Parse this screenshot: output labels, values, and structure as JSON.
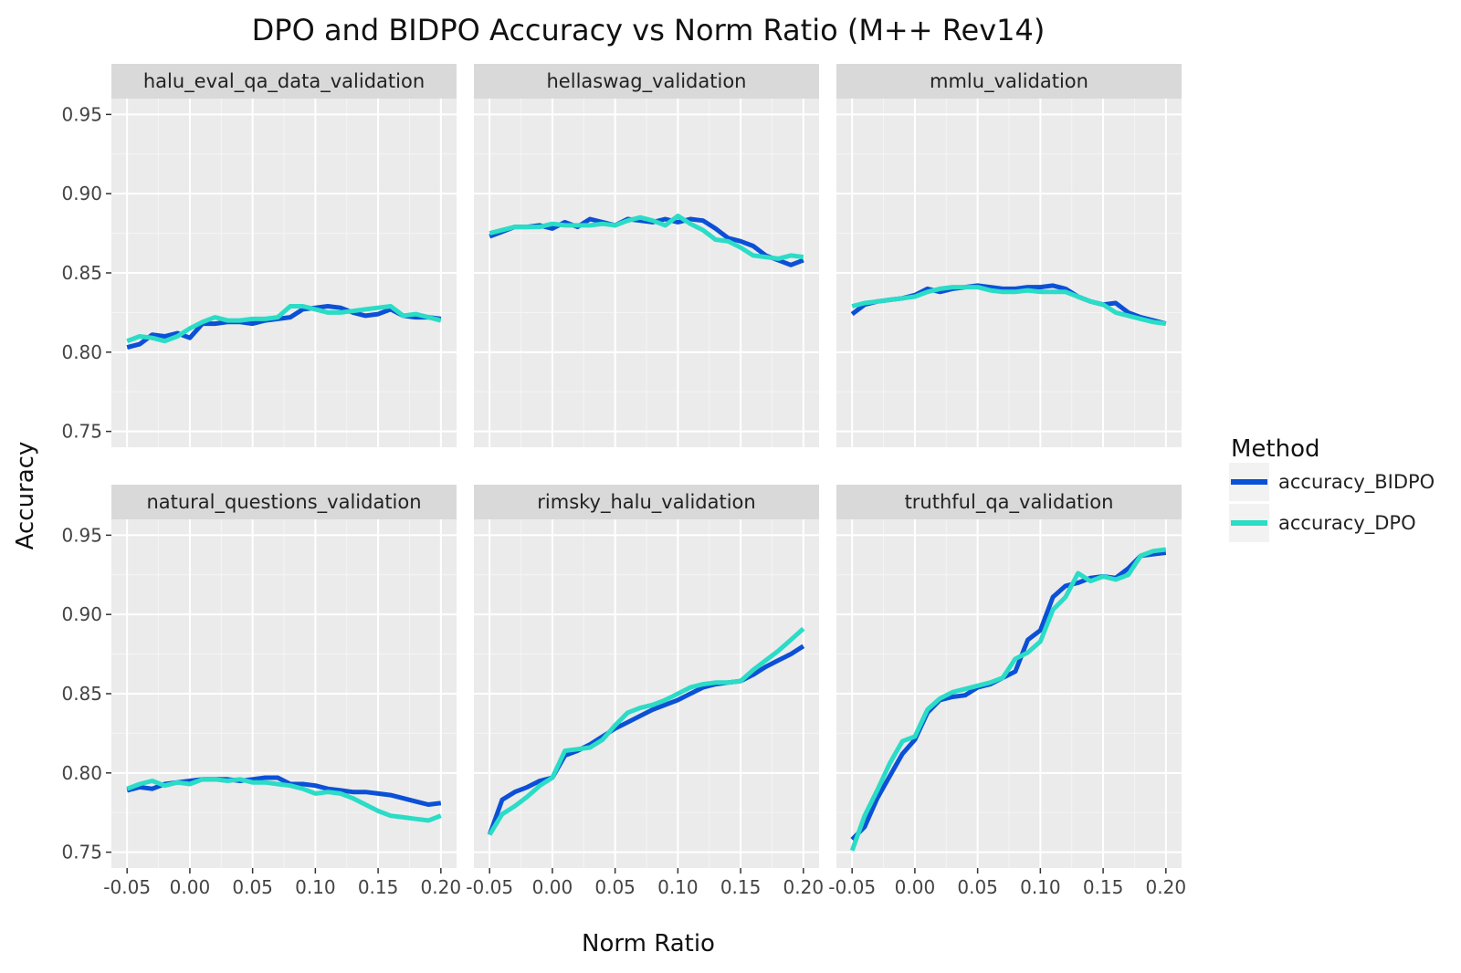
{
  "chart_data": {
    "type": "line",
    "title": "DPO and BIDPO Accuracy vs Norm Ratio (M++ Rev14)",
    "xlabel": "Norm Ratio",
    "ylabel": "Accuracy",
    "xlim": [
      -0.05,
      0.2
    ],
    "ylim": [
      0.75,
      0.95
    ],
    "x_ticks": [
      "-0.05",
      "0.00",
      "0.05",
      "0.10",
      "0.15",
      "0.20"
    ],
    "y_ticks": [
      "0.75",
      "0.80",
      "0.85",
      "0.90",
      "0.95"
    ],
    "x_tick_values": [
      -0.05,
      0.0,
      0.05,
      0.1,
      0.15,
      0.2
    ],
    "y_tick_values": [
      0.75,
      0.8,
      0.85,
      0.9,
      0.95
    ],
    "grid": true,
    "legend": {
      "title": "Method",
      "position": "right",
      "entries": [
        {
          "name": "accuracy_BIDPO",
          "color": "#0b50d6"
        },
        {
          "name": "accuracy_DPO",
          "color": "#2bdcc6"
        }
      ]
    },
    "x": [
      -0.05,
      -0.04,
      -0.03,
      -0.02,
      -0.01,
      0.0,
      0.01,
      0.02,
      0.03,
      0.04,
      0.05,
      0.06,
      0.07,
      0.08,
      0.09,
      0.1,
      0.11,
      0.12,
      0.13,
      0.14,
      0.15,
      0.16,
      0.17,
      0.18,
      0.19,
      0.2
    ],
    "panels": [
      {
        "name": "halu_eval_qa_data_validation",
        "series": [
          {
            "name": "accuracy_BIDPO",
            "values": [
              0.803,
              0.805,
              0.811,
              0.81,
              0.812,
              0.809,
              0.818,
              0.818,
              0.819,
              0.819,
              0.818,
              0.82,
              0.821,
              0.822,
              0.827,
              0.828,
              0.829,
              0.828,
              0.825,
              0.823,
              0.824,
              0.827,
              0.823,
              0.822,
              0.822,
              0.821
            ]
          },
          {
            "name": "accuracy_DPO",
            "values": [
              0.807,
              0.81,
              0.809,
              0.807,
              0.81,
              0.815,
              0.819,
              0.822,
              0.82,
              0.82,
              0.821,
              0.821,
              0.822,
              0.829,
              0.829,
              0.827,
              0.825,
              0.825,
              0.826,
              0.827,
              0.828,
              0.829,
              0.823,
              0.824,
              0.822,
              0.82
            ]
          }
        ]
      },
      {
        "name": "hellaswag_validation",
        "series": [
          {
            "name": "accuracy_BIDPO",
            "values": [
              0.873,
              0.876,
              0.879,
              0.879,
              0.88,
              0.878,
              0.882,
              0.879,
              0.884,
              0.882,
              0.88,
              0.884,
              0.883,
              0.882,
              0.884,
              0.882,
              0.884,
              0.883,
              0.878,
              0.872,
              0.87,
              0.867,
              0.861,
              0.858,
              0.855,
              0.858
            ]
          },
          {
            "name": "accuracy_DPO",
            "values": [
              0.875,
              0.877,
              0.879,
              0.879,
              0.879,
              0.881,
              0.88,
              0.88,
              0.88,
              0.881,
              0.88,
              0.883,
              0.885,
              0.883,
              0.88,
              0.886,
              0.881,
              0.877,
              0.871,
              0.87,
              0.866,
              0.861,
              0.86,
              0.859,
              0.861,
              0.86
            ]
          }
        ]
      },
      {
        "name": "mmlu_validation",
        "series": [
          {
            "name": "accuracy_BIDPO",
            "values": [
              0.824,
              0.83,
              0.832,
              0.833,
              0.834,
              0.836,
              0.84,
              0.838,
              0.84,
              0.841,
              0.842,
              0.841,
              0.84,
              0.84,
              0.841,
              0.841,
              0.842,
              0.84,
              0.835,
              0.832,
              0.83,
              0.831,
              0.825,
              0.822,
              0.82,
              0.818
            ]
          },
          {
            "name": "accuracy_DPO",
            "values": [
              0.829,
              0.831,
              0.832,
              0.833,
              0.834,
              0.835,
              0.838,
              0.84,
              0.841,
              0.841,
              0.841,
              0.839,
              0.838,
              0.838,
              0.839,
              0.838,
              0.838,
              0.838,
              0.835,
              0.832,
              0.83,
              0.825,
              0.823,
              0.821,
              0.819,
              0.818
            ]
          }
        ]
      },
      {
        "name": "natural_questions_validation",
        "series": [
          {
            "name": "accuracy_BIDPO",
            "values": [
              0.789,
              0.791,
              0.79,
              0.793,
              0.794,
              0.795,
              0.796,
              0.796,
              0.796,
              0.795,
              0.796,
              0.797,
              0.797,
              0.793,
              0.793,
              0.792,
              0.79,
              0.789,
              0.788,
              0.788,
              0.787,
              0.786,
              0.784,
              0.782,
              0.78,
              0.781
            ]
          },
          {
            "name": "accuracy_DPO",
            "values": [
              0.79,
              0.793,
              0.795,
              0.792,
              0.794,
              0.793,
              0.796,
              0.796,
              0.795,
              0.796,
              0.794,
              0.794,
              0.793,
              0.792,
              0.79,
              0.787,
              0.788,
              0.787,
              0.784,
              0.78,
              0.776,
              0.773,
              0.772,
              0.771,
              0.77,
              0.773
            ]
          }
        ]
      },
      {
        "name": "rimsky_halu_validation",
        "series": [
          {
            "name": "accuracy_BIDPO",
            "values": [
              0.761,
              0.783,
              0.788,
              0.791,
              0.795,
              0.797,
              0.811,
              0.814,
              0.818,
              0.823,
              0.828,
              0.832,
              0.836,
              0.84,
              0.843,
              0.846,
              0.85,
              0.854,
              0.856,
              0.857,
              0.858,
              0.862,
              0.867,
              0.871,
              0.875,
              0.88
            ]
          },
          {
            "name": "accuracy_DPO",
            "values": [
              0.761,
              0.774,
              0.779,
              0.785,
              0.792,
              0.797,
              0.814,
              0.815,
              0.816,
              0.821,
              0.83,
              0.838,
              0.841,
              0.843,
              0.846,
              0.85,
              0.854,
              0.856,
              0.857,
              0.857,
              0.858,
              0.865,
              0.871,
              0.877,
              0.884,
              0.891
            ]
          }
        ]
      },
      {
        "name": "truthful_qa_validation",
        "series": [
          {
            "name": "accuracy_BIDPO",
            "values": [
              0.758,
              0.766,
              0.784,
              0.798,
              0.812,
              0.821,
              0.838,
              0.846,
              0.848,
              0.849,
              0.854,
              0.856,
              0.86,
              0.864,
              0.884,
              0.89,
              0.911,
              0.918,
              0.92,
              0.923,
              0.924,
              0.923,
              0.929,
              0.937,
              0.938,
              0.939
            ]
          },
          {
            "name": "accuracy_DPO",
            "values": [
              0.751,
              0.773,
              0.789,
              0.806,
              0.82,
              0.823,
              0.84,
              0.847,
              0.851,
              0.853,
              0.855,
              0.857,
              0.86,
              0.872,
              0.876,
              0.883,
              0.903,
              0.911,
              0.926,
              0.921,
              0.924,
              0.922,
              0.925,
              0.937,
              0.94,
              0.941
            ]
          }
        ]
      }
    ]
  }
}
